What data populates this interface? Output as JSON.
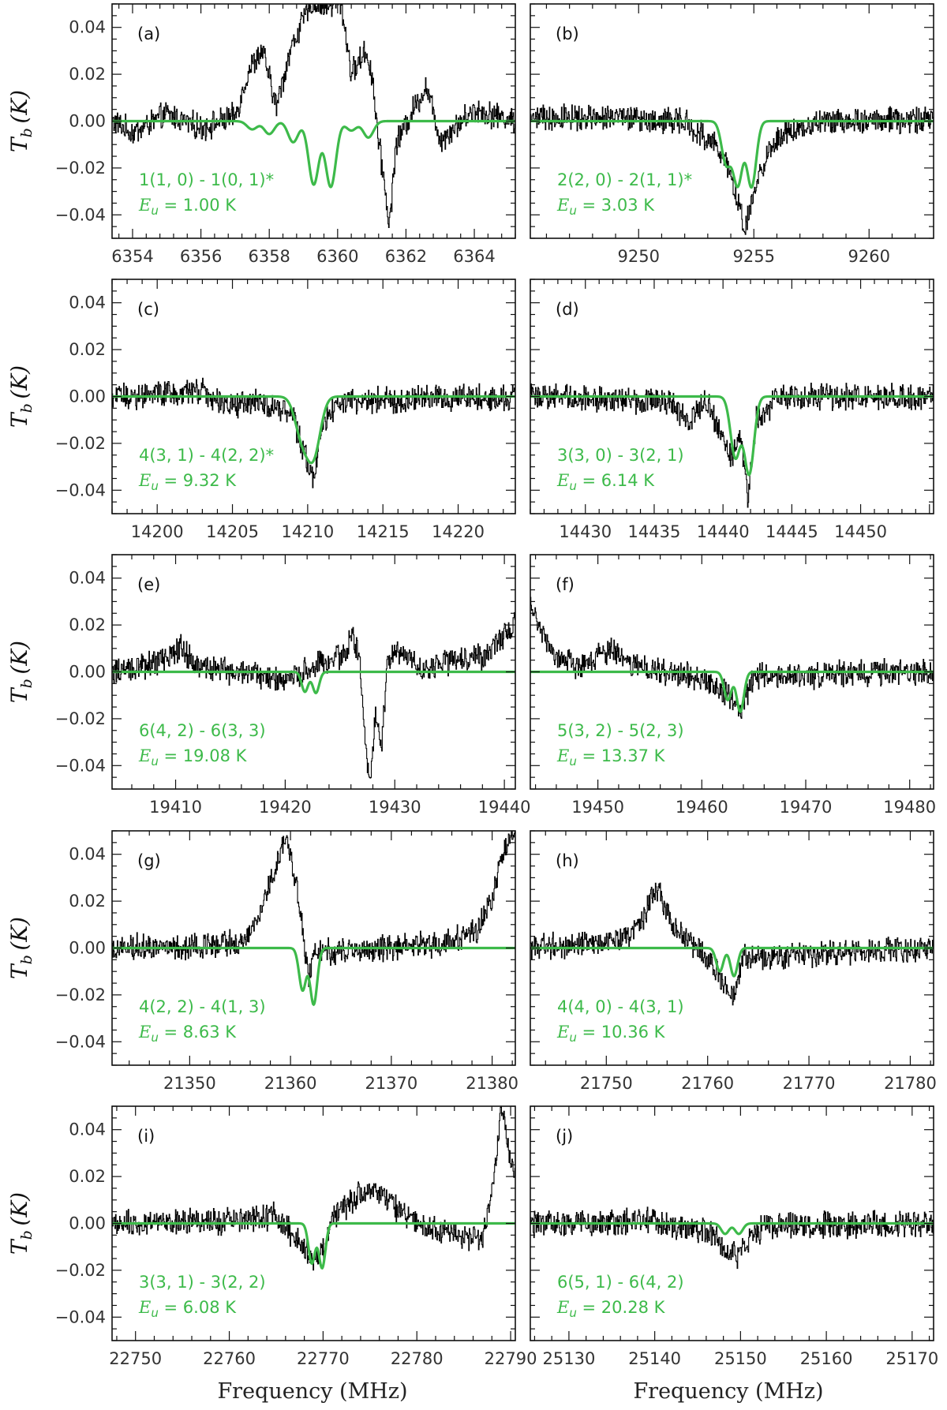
{
  "figure": {
    "xlabel": "Frequency (MHz)",
    "ylabel": "T_b (K)",
    "model_color": "#3dba4a",
    "data_color": "#000000"
  },
  "chart_data": [
    {
      "type": "line",
      "panel_label": "(a)",
      "transition": "1(1, 0) - 1(0, 1)*",
      "energy": "E_u = 1.00 K",
      "energy_value": "= 1.00 K",
      "xlim": [
        6353.4,
        6365.2
      ],
      "ylim": [
        -0.05,
        0.05
      ],
      "xticks": [
        6354,
        6356,
        6358,
        6360,
        6362,
        6364
      ],
      "yticks": [
        -0.04,
        -0.02,
        0.0,
        0.02,
        0.04
      ],
      "series": [
        {
          "role": "observed",
          "points": [
            [
              6353.4,
              0.0
            ],
            [
              6354.0,
              -0.005
            ],
            [
              6355.0,
              0.003
            ],
            [
              6356.0,
              -0.003
            ],
            [
              6357.0,
              0.002
            ],
            [
              6357.4,
              0.022
            ],
            [
              6357.8,
              0.03
            ],
            [
              6358.2,
              0.006
            ],
            [
              6358.6,
              0.03
            ],
            [
              6358.9,
              0.04
            ],
            [
              6359.2,
              0.05
            ],
            [
              6359.8,
              0.05
            ],
            [
              6360.1,
              0.05
            ],
            [
              6360.4,
              0.02
            ],
            [
              6360.8,
              0.03
            ],
            [
              6361.0,
              0.02
            ],
            [
              6361.2,
              -0.01
            ],
            [
              6361.4,
              -0.03
            ],
            [
              6361.5,
              -0.046
            ],
            [
              6361.7,
              -0.01
            ],
            [
              6362.2,
              0.005
            ],
            [
              6362.6,
              0.015
            ],
            [
              6363.0,
              -0.008
            ],
            [
              6364.0,
              0.005
            ],
            [
              6365.2,
              0.0
            ]
          ]
        },
        {
          "role": "model",
          "lines": [
            {
              "center": 6357.5,
              "depth": 0.0035
            },
            {
              "center": 6358.0,
              "depth": 0.0055
            },
            {
              "center": 6358.7,
              "depth": 0.009
            },
            {
              "center": 6359.3,
              "depth": 0.027
            },
            {
              "center": 6359.8,
              "depth": 0.028
            },
            {
              "center": 6360.4,
              "depth": 0.004
            },
            {
              "center": 6360.9,
              "depth": 0.007
            }
          ],
          "width": 0.15
        }
      ]
    },
    {
      "type": "line",
      "panel_label": "(b)",
      "transition": "2(2, 0) - 2(1, 1)*",
      "energy": "E_u = 3.03 K",
      "energy_value": "= 3.03 K",
      "xlim": [
        9245.3,
        9262.8
      ],
      "ylim": [
        -0.05,
        0.05
      ],
      "xticks": [
        9250,
        9255,
        9260
      ],
      "yticks": [
        -0.04,
        -0.02,
        0.0,
        0.02,
        0.04
      ],
      "series": [
        {
          "role": "observed",
          "points": [
            [
              9245.3,
              0.002
            ],
            [
              9250.0,
              0.001
            ],
            [
              9252.0,
              0.0
            ],
            [
              9253.3,
              -0.01
            ],
            [
              9253.9,
              -0.02
            ],
            [
              9254.3,
              -0.035
            ],
            [
              9254.6,
              -0.048
            ],
            [
              9255.0,
              -0.03
            ],
            [
              9255.6,
              -0.012
            ],
            [
              9256.5,
              -0.004
            ],
            [
              9258.0,
              0.0
            ],
            [
              9262.8,
              0.001
            ]
          ]
        },
        {
          "role": "model",
          "lines": [
            {
              "center": 9253.8,
              "depth": 0.018
            },
            {
              "center": 9254.3,
              "depth": 0.027
            },
            {
              "center": 9254.9,
              "depth": 0.028
            }
          ],
          "width": 0.2
        }
      ]
    },
    {
      "type": "line",
      "panel_label": "(c)",
      "transition": "4(3, 1) - 4(2, 2)*",
      "energy": "E_u = 9.32 K",
      "energy_value": "= 9.32 K",
      "xlim": [
        14197.0,
        14223.8
      ],
      "ylim": [
        -0.05,
        0.05
      ],
      "xticks": [
        14200,
        14205,
        14210,
        14215,
        14220
      ],
      "yticks": [
        -0.04,
        -0.02,
        0.0,
        0.02,
        0.04
      ],
      "series": [
        {
          "role": "observed",
          "points": [
            [
              14197.0,
              0.0
            ],
            [
              14203.0,
              0.002
            ],
            [
              14205.0,
              -0.004
            ],
            [
              14207.0,
              -0.002
            ],
            [
              14209.0,
              -0.008
            ],
            [
              14209.8,
              -0.025
            ],
            [
              14210.4,
              -0.035
            ],
            [
              14211.0,
              -0.012
            ],
            [
              14212.0,
              -0.002
            ],
            [
              14223.8,
              0.0
            ]
          ]
        },
        {
          "role": "model",
          "lines": [
            {
              "center": 14209.6,
              "depth": 0.016
            },
            {
              "center": 14210.4,
              "depth": 0.024
            }
          ],
          "width": 0.45
        }
      ]
    },
    {
      "type": "line",
      "panel_label": "(d)",
      "transition": "3(3, 0) - 3(2, 1)",
      "energy": "E_u = 6.14 K",
      "energy_value": "= 6.14 K",
      "xlim": [
        14426.0,
        14455.3
      ],
      "ylim": [
        -0.05,
        0.05
      ],
      "xticks": [
        14430,
        14435,
        14440,
        14445,
        14450
      ],
      "yticks": [
        -0.04,
        -0.02,
        0.0,
        0.02,
        0.04
      ],
      "series": [
        {
          "role": "observed",
          "points": [
            [
              14426.0,
              0.0
            ],
            [
              14436.0,
              -0.002
            ],
            [
              14437.5,
              -0.01
            ],
            [
              14438.8,
              -0.002
            ],
            [
              14440.6,
              -0.026
            ],
            [
              14441.2,
              -0.015
            ],
            [
              14441.8,
              -0.042
            ],
            [
              14442.4,
              -0.01
            ],
            [
              14444.0,
              0.0
            ],
            [
              14455.3,
              0.0
            ]
          ]
        },
        {
          "role": "model",
          "lines": [
            {
              "center": 14440.9,
              "depth": 0.026
            },
            {
              "center": 14441.9,
              "depth": 0.033
            }
          ],
          "width": 0.35
        }
      ]
    },
    {
      "type": "line",
      "panel_label": "(e)",
      "transition": "6(4, 2) - 6(3, 3)",
      "energy": "E_u = 19.08 K",
      "energy_value": "= 19.08 K",
      "xlim": [
        19404.2,
        19441.0
      ],
      "ylim": [
        -0.05,
        0.05
      ],
      "xticks": [
        19410,
        19420,
        19430,
        19440
      ],
      "yticks": [
        -0.04,
        -0.02,
        0.0,
        0.02,
        0.04
      ],
      "series": [
        {
          "role": "observed",
          "points": [
            [
              19404.2,
              0.0
            ],
            [
              19409.0,
              0.005
            ],
            [
              19410.5,
              0.01
            ],
            [
              19412.0,
              0.002
            ],
            [
              19420.0,
              -0.003
            ],
            [
              19425.5,
              0.008
            ],
            [
              19426.0,
              0.017
            ],
            [
              19426.8,
              0.005
            ],
            [
              19427.3,
              -0.03
            ],
            [
              19427.7,
              -0.05
            ],
            [
              19428.2,
              -0.02
            ],
            [
              19428.8,
              -0.03
            ],
            [
              19429.3,
              0.004
            ],
            [
              19430.5,
              0.01
            ],
            [
              19432.0,
              0.002
            ],
            [
              19438.0,
              0.006
            ],
            [
              19440.5,
              0.018
            ],
            [
              19441.0,
              0.025
            ]
          ]
        },
        {
          "role": "model",
          "lines": [
            {
              "center": 19421.8,
              "depth": 0.0085
            },
            {
              "center": 19422.8,
              "depth": 0.009
            }
          ],
          "width": 0.3
        }
      ]
    },
    {
      "type": "line",
      "panel_label": "(f)",
      "transition": "5(3, 2) - 5(2, 3)",
      "energy": "E_u = 13.37 K",
      "energy_value": "= 13.37 K",
      "xlim": [
        19443.5,
        19482.3
      ],
      "ylim": [
        -0.05,
        0.05
      ],
      "xticks": [
        19450,
        19460,
        19470,
        19480
      ],
      "yticks": [
        -0.04,
        -0.02,
        0.0,
        0.02,
        0.04
      ],
      "series": [
        {
          "role": "observed",
          "points": [
            [
              19443.5,
              0.03
            ],
            [
              19444.5,
              0.017
            ],
            [
              19446.0,
              0.006
            ],
            [
              19448.0,
              0.002
            ],
            [
              19451.5,
              0.01
            ],
            [
              19453.0,
              0.002
            ],
            [
              19460.0,
              -0.002
            ],
            [
              19462.5,
              -0.01
            ],
            [
              19463.7,
              -0.016
            ],
            [
              19465.0,
              -0.002
            ],
            [
              19482.3,
              0.0
            ]
          ]
        },
        {
          "role": "model",
          "lines": [
            {
              "center": 19462.5,
              "depth": 0.012
            },
            {
              "center": 19463.7,
              "depth": 0.017
            }
          ],
          "width": 0.35
        }
      ]
    },
    {
      "type": "line",
      "panel_label": "(g)",
      "transition": "4(2, 2) - 4(1, 3)",
      "energy": "E_u = 8.63 K",
      "energy_value": "= 8.63 K",
      "xlim": [
        21342.3,
        21382.3
      ],
      "ylim": [
        -0.05,
        0.05
      ],
      "xticks": [
        21350,
        21360,
        21370,
        21380
      ],
      "yticks": [
        -0.04,
        -0.02,
        0.0,
        0.02,
        0.04
      ],
      "series": [
        {
          "role": "observed",
          "points": [
            [
              21342.3,
              0.0
            ],
            [
              21355.0,
              0.002
            ],
            [
              21357.0,
              0.015
            ],
            [
              21358.5,
              0.035
            ],
            [
              21359.5,
              0.048
            ],
            [
              21360.5,
              0.03
            ],
            [
              21361.2,
              0.008
            ],
            [
              21361.8,
              -0.012
            ],
            [
              21362.5,
              -0.002
            ],
            [
              21370.0,
              0.0
            ],
            [
              21376.0,
              0.003
            ],
            [
              21378.5,
              0.008
            ],
            [
              21380.0,
              0.02
            ],
            [
              21381.0,
              0.04
            ],
            [
              21382.3,
              0.05
            ]
          ]
        },
        {
          "role": "model",
          "lines": [
            {
              "center": 21361.2,
              "depth": 0.018
            },
            {
              "center": 21362.3,
              "depth": 0.024
            }
          ],
          "width": 0.35
        }
      ]
    },
    {
      "type": "line",
      "panel_label": "(h)",
      "transition": "4(4, 0) - 4(3, 1)",
      "energy": "E_u = 10.36 K",
      "energy_value": "= 10.36 K",
      "xlim": [
        21742.5,
        21782.3
      ],
      "ylim": [
        -0.05,
        0.05
      ],
      "xticks": [
        21750,
        21760,
        21770,
        21780
      ],
      "yticks": [
        -0.04,
        -0.02,
        0.0,
        0.02,
        0.04
      ],
      "series": [
        {
          "role": "observed",
          "points": [
            [
              21742.5,
              0.0
            ],
            [
              21752.0,
              0.004
            ],
            [
              21753.5,
              0.012
            ],
            [
              21755.0,
              0.025
            ],
            [
              21756.5,
              0.01
            ],
            [
              21758.5,
              0.002
            ],
            [
              21761.0,
              -0.01
            ],
            [
              21762.5,
              -0.022
            ],
            [
              21763.5,
              -0.004
            ],
            [
              21782.3,
              0.0
            ]
          ]
        },
        {
          "role": "model",
          "lines": [
            {
              "center": 21761.2,
              "depth": 0.01
            },
            {
              "center": 21762.6,
              "depth": 0.012
            }
          ],
          "width": 0.35
        }
      ]
    },
    {
      "type": "line",
      "panel_label": "(i)",
      "transition": "3(3, 1) - 3(2, 2)",
      "energy": "E_u = 6.08 K",
      "energy_value": "= 6.08 K",
      "xlim": [
        22747.5,
        22790.5
      ],
      "ylim": [
        -0.05,
        0.05
      ],
      "xticks": [
        22750,
        22760,
        22770,
        22780,
        22790
      ],
      "yticks": [
        -0.04,
        -0.02,
        0.0,
        0.02,
        0.04
      ],
      "series": [
        {
          "role": "observed",
          "points": [
            [
              22747.5,
              0.0
            ],
            [
              22760.0,
              0.001
            ],
            [
              22765.0,
              0.003
            ],
            [
              22767.5,
              -0.008
            ],
            [
              22769.0,
              -0.018
            ],
            [
              22770.0,
              -0.012
            ],
            [
              22771.0,
              0.002
            ],
            [
              22773.0,
              0.01
            ],
            [
              22775.5,
              0.016
            ],
            [
              22777.0,
              0.008
            ],
            [
              22780.0,
              0.0
            ],
            [
              22787.0,
              -0.008
            ],
            [
              22788.2,
              0.02
            ],
            [
              22789.0,
              0.05
            ],
            [
              22789.8,
              0.03
            ],
            [
              22790.5,
              0.02
            ]
          ]
        },
        {
          "role": "model",
          "lines": [
            {
              "center": 22768.8,
              "depth": 0.017
            },
            {
              "center": 22769.9,
              "depth": 0.019
            }
          ],
          "width": 0.35
        }
      ]
    },
    {
      "type": "line",
      "panel_label": "(j)",
      "transition": "6(5, 1) - 6(4, 2)",
      "energy": "E_u = 20.28 K",
      "energy_value": "= 20.28 K",
      "xlim": [
        25125.5,
        25172.5
      ],
      "ylim": [
        -0.05,
        0.05
      ],
      "xticks": [
        25130,
        25140,
        25150,
        25160,
        25170
      ],
      "yticks": [
        -0.04,
        -0.02,
        0.0,
        0.02,
        0.04
      ],
      "series": [
        {
          "role": "observed",
          "points": [
            [
              25125.5,
              0.0
            ],
            [
              25140.0,
              0.001
            ],
            [
              25146.5,
              -0.004
            ],
            [
              25148.0,
              -0.01
            ],
            [
              25149.5,
              -0.014
            ],
            [
              25151.0,
              -0.006
            ],
            [
              25153.0,
              -0.001
            ],
            [
              25172.5,
              0.0
            ]
          ]
        },
        {
          "role": "model",
          "lines": [
            {
              "center": 25148.2,
              "depth": 0.0045
            },
            {
              "center": 25149.8,
              "depth": 0.0045
            }
          ],
          "width": 0.45
        }
      ]
    }
  ]
}
